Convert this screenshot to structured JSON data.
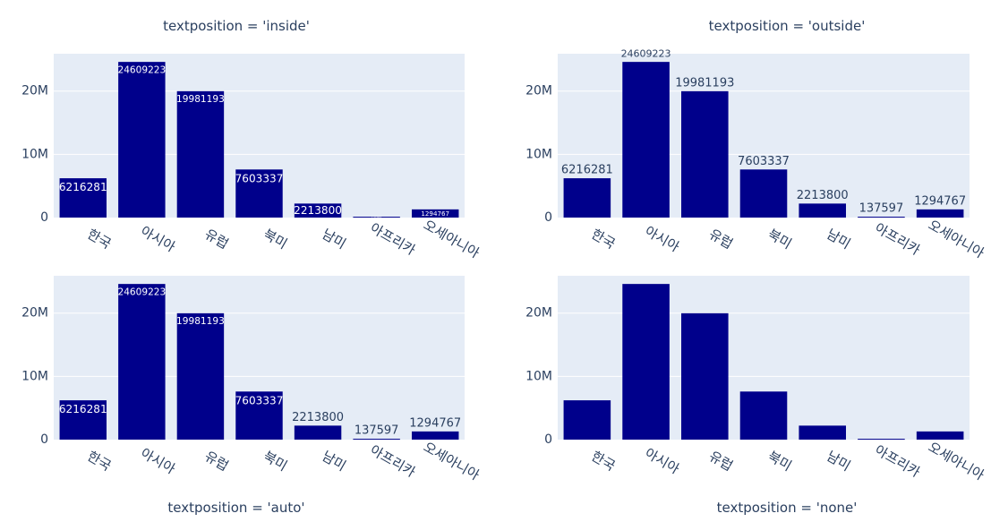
{
  "colors": {
    "bar": "#00008b",
    "plot_bg": "#e5ecf6",
    "grid": "#ffffff",
    "text": "#2a3f5f",
    "inside_text": "#ffffff"
  },
  "chart_data": [
    {
      "type": "bar",
      "title": "textposition = 'inside'",
      "textposition": "inside",
      "categories": [
        "한국",
        "아시아",
        "유럽",
        "북미",
        "남미",
        "아프리카",
        "오세아니아"
      ],
      "values": [
        6216281,
        24609223,
        19981193,
        7603337,
        2213800,
        137597,
        1294767
      ],
      "text": [
        "6216281",
        "24609223",
        "19981193",
        "7603337",
        "2213800",
        "137597",
        "1294767"
      ],
      "ylim": [
        0,
        25904445
      ],
      "yticks": [
        {
          "v": 0,
          "label": "0"
        },
        {
          "v": 10000000,
          "label": "10M"
        },
        {
          "v": 20000000,
          "label": "20M"
        }
      ],
      "xlabel": "",
      "ylabel": "",
      "grid": true
    },
    {
      "type": "bar",
      "title": "textposition = 'outside'",
      "textposition": "outside",
      "categories": [
        "한국",
        "아시아",
        "유럽",
        "북미",
        "남미",
        "아프리카",
        "오세아니아"
      ],
      "values": [
        6216281,
        24609223,
        19981193,
        7603337,
        2213800,
        137597,
        1294767
      ],
      "text": [
        "6216281",
        "24609223",
        "19981193",
        "7603337",
        "2213800",
        "137597",
        "1294767"
      ],
      "ylim": [
        0,
        25904445
      ],
      "yticks": [
        {
          "v": 0,
          "label": "0"
        },
        {
          "v": 10000000,
          "label": "10M"
        },
        {
          "v": 20000000,
          "label": "20M"
        }
      ],
      "xlabel": "",
      "ylabel": "",
      "grid": true
    },
    {
      "type": "bar",
      "title": "textposition = 'auto'",
      "textposition": "auto",
      "categories": [
        "한국",
        "아시아",
        "유럽",
        "북미",
        "남미",
        "아프리카",
        "오세아니아"
      ],
      "values": [
        6216281,
        24609223,
        19981193,
        7603337,
        2213800,
        137597,
        1294767
      ],
      "text": [
        "6216281",
        "24609223",
        "19981193",
        "7603337",
        "2213800",
        "137597",
        "1294767"
      ],
      "ylim": [
        0,
        25904445
      ],
      "yticks": [
        {
          "v": 0,
          "label": "0"
        },
        {
          "v": 10000000,
          "label": "10M"
        },
        {
          "v": 20000000,
          "label": "20M"
        }
      ],
      "xlabel": "",
      "ylabel": "",
      "grid": true
    },
    {
      "type": "bar",
      "title": "textposition = 'none'",
      "textposition": "none",
      "categories": [
        "한국",
        "아시아",
        "유럽",
        "북미",
        "남미",
        "아프리카",
        "오세아니아"
      ],
      "values": [
        6216281,
        24609223,
        19981193,
        7603337,
        2213800,
        137597,
        1294767
      ],
      "text": [],
      "ylim": [
        0,
        25904445
      ],
      "yticks": [
        {
          "v": 0,
          "label": "0"
        },
        {
          "v": 10000000,
          "label": "10M"
        },
        {
          "v": 20000000,
          "label": "20M"
        }
      ],
      "xlabel": "",
      "ylabel": "",
      "grid": true
    }
  ]
}
